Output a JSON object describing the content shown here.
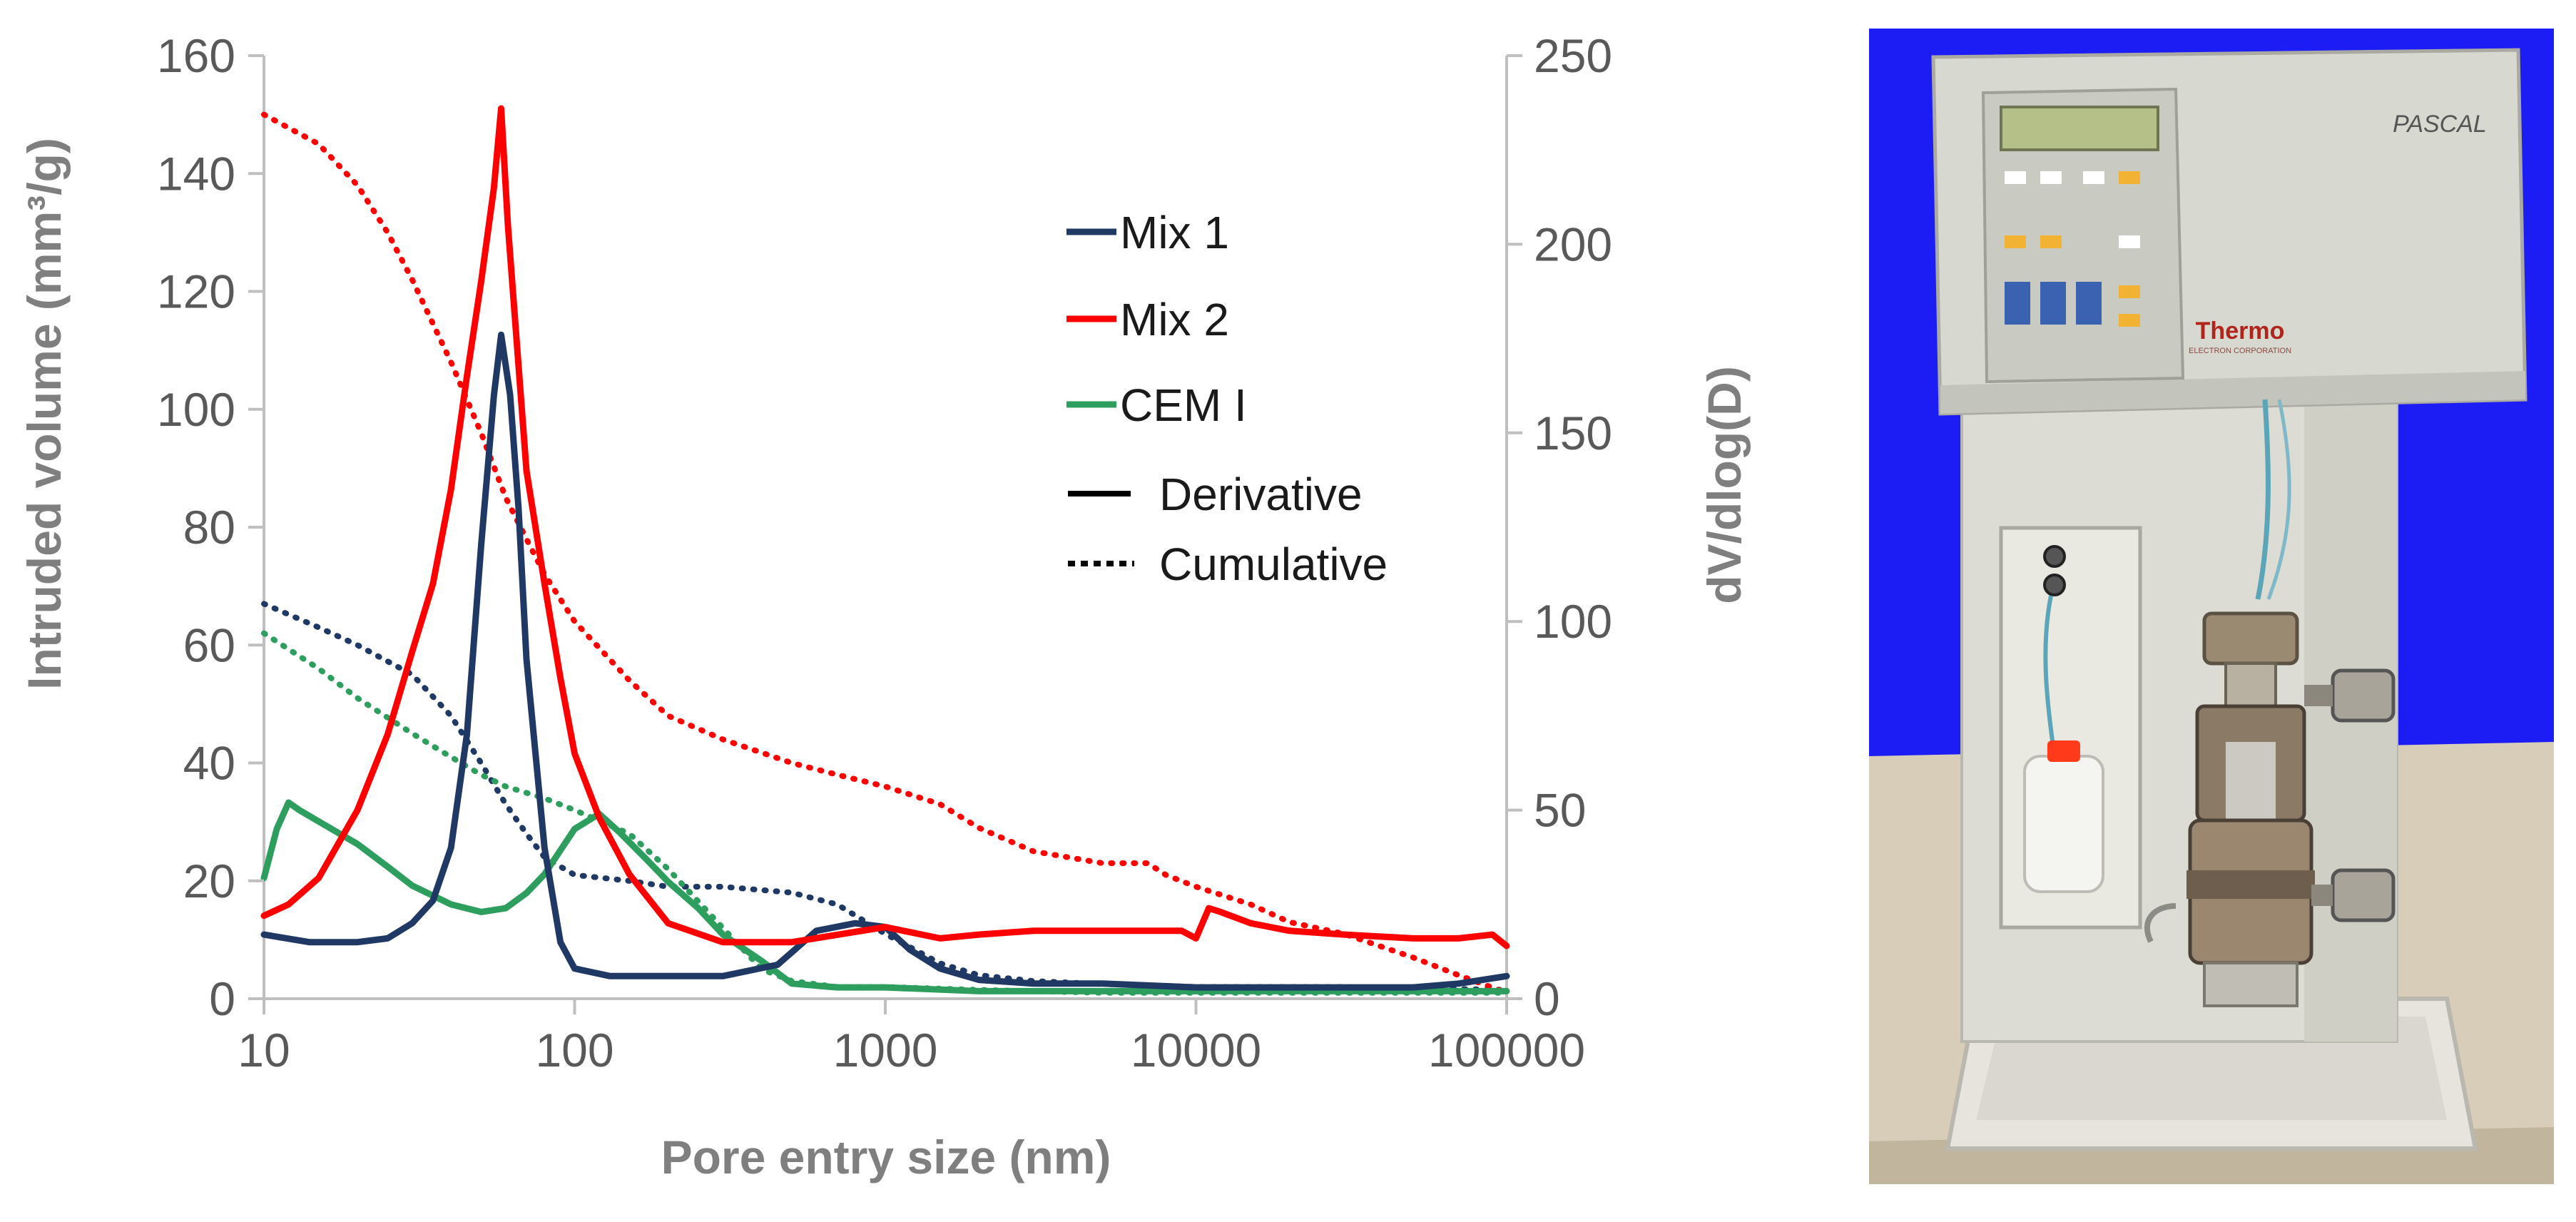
{
  "chart_data": {
    "type": "line",
    "x_scale": "log",
    "xlabel": "Pore entry size (nm)",
    "ylabel_left": "Intruded volume (mm³/g)",
    "ylabel_right": "dV/dlog(D)",
    "xlim": [
      10,
      100000
    ],
    "ylim_left": [
      0,
      160
    ],
    "ylim_right": [
      0,
      250
    ],
    "x_ticks": [
      "10",
      "100",
      "1000",
      "10000",
      "100000"
    ],
    "y_ticks_left": [
      "0",
      "20",
      "40",
      "60",
      "80",
      "100",
      "120",
      "140",
      "160"
    ],
    "y_ticks_right": [
      "0",
      "50",
      "100",
      "150",
      "200",
      "250"
    ],
    "legend": {
      "placement": "top-right",
      "series": [
        "Mix 1",
        "Mix 2",
        "CEM I"
      ],
      "styles": [
        "Derivative",
        "Cumulative"
      ]
    },
    "series": [
      {
        "name": "Mix 1",
        "color": "#1f3864",
        "style": "Derivative",
        "axis": "right",
        "x": [
          10,
          14,
          20,
          25,
          30,
          35,
          40,
          45,
          50,
          55,
          58,
          62,
          66,
          70,
          80,
          90,
          100,
          130,
          200,
          300,
          450,
          600,
          800,
          1000,
          1200,
          1500,
          2000,
          3000,
          5000,
          10000,
          20000,
          50000,
          70000,
          100000
        ],
        "y": [
          17,
          15,
          15,
          16,
          20,
          26,
          40,
          70,
          120,
          160,
          176,
          160,
          130,
          90,
          40,
          15,
          8,
          6,
          6,
          6,
          9,
          18,
          20,
          19,
          13,
          8,
          5,
          4,
          4,
          3,
          3,
          3,
          4,
          6
        ]
      },
      {
        "name": "Mix 2",
        "color": "#ff0000",
        "style": "Derivative",
        "axis": "right",
        "x": [
          10,
          12,
          15,
          20,
          25,
          30,
          35,
          40,
          45,
          50,
          55,
          58,
          61,
          65,
          70,
          80,
          90,
          100,
          120,
          150,
          200,
          300,
          500,
          1000,
          1500,
          2000,
          3000,
          5000,
          7000,
          9000,
          10000,
          11000,
          12000,
          15000,
          20000,
          30000,
          50000,
          70000,
          90000,
          100000
        ],
        "y": [
          22,
          25,
          32,
          50,
          70,
          92,
          110,
          135,
          165,
          190,
          215,
          236,
          205,
          175,
          140,
          110,
          85,
          65,
          48,
          33,
          20,
          15,
          15,
          19,
          16,
          17,
          18,
          18,
          18,
          18,
          16,
          24,
          23,
          20,
          18,
          17,
          16,
          16,
          17,
          14
        ]
      },
      {
        "name": "CEM I",
        "color": "#2e9e5e",
        "style": "Derivative",
        "axis": "right",
        "x": [
          10,
          11,
          12,
          13,
          15,
          20,
          25,
          30,
          40,
          50,
          60,
          70,
          80,
          100,
          120,
          140,
          170,
          200,
          250,
          300,
          400,
          500,
          700,
          1000,
          2000,
          5000,
          10000,
          50000,
          100000
        ],
        "y": [
          32,
          45,
          52,
          50,
          47,
          41,
          35,
          30,
          25,
          23,
          24,
          28,
          33,
          45,
          49,
          44,
          37,
          31,
          24,
          17,
          10,
          4,
          3,
          3,
          2,
          2,
          2,
          2,
          2
        ]
      },
      {
        "name": "Mix 1",
        "color": "#1f3864",
        "style": "Cumulative",
        "axis": "left",
        "x": [
          10,
          15,
          20,
          30,
          40,
          50,
          60,
          70,
          80,
          100,
          150,
          200,
          300,
          500,
          700,
          1000,
          1500,
          2000,
          3000,
          5000,
          10000,
          30000,
          100000
        ],
        "y": [
          67,
          63,
          60,
          55,
          48,
          40,
          33,
          28,
          24,
          21,
          20,
          19,
          19,
          18,
          16,
          11,
          6,
          4,
          3,
          2.5,
          2,
          2,
          1.5
        ]
      },
      {
        "name": "Mix 2",
        "color": "#ff0000",
        "style": "Cumulative",
        "axis": "left",
        "x": [
          10,
          15,
          20,
          25,
          30,
          40,
          50,
          60,
          70,
          80,
          100,
          150,
          200,
          300,
          500,
          700,
          1000,
          1500,
          2000,
          3000,
          5000,
          7000,
          8000,
          10000,
          15000,
          20000,
          30000,
          50000,
          70000,
          100000
        ],
        "y": [
          150,
          145,
          138,
          130,
          122,
          108,
          96,
          85,
          78,
          72,
          64,
          54,
          48,
          44,
          40,
          38,
          36,
          33,
          29,
          25,
          23,
          23,
          21,
          19,
          16,
          13,
          11,
          7,
          4,
          1
        ]
      },
      {
        "name": "CEM I",
        "color": "#2e9e5e",
        "style": "Cumulative",
        "axis": "left",
        "x": [
          10,
          15,
          20,
          30,
          40,
          50,
          60,
          80,
          100,
          150,
          200,
          300,
          400,
          500,
          700,
          1000,
          2000,
          5000,
          10000,
          100000
        ],
        "y": [
          62,
          56,
          51,
          45,
          41,
          38,
          36,
          34,
          32,
          28,
          22,
          12,
          5,
          3,
          2,
          2,
          1.5,
          1,
          1,
          1
        ]
      }
    ]
  },
  "photo": {
    "brand": "PASCAL",
    "maker": "Thermo",
    "maker_subtitle": "ELECTRON CORPORATION",
    "colors": {
      "background": "#1c1cf5",
      "body": "#dcdcd4",
      "panel": "#c9cbc3",
      "screen": "#b5c088",
      "table": "#d8cdb8",
      "metal": "#9a8a72",
      "cap": "#ff3a1a"
    }
  }
}
